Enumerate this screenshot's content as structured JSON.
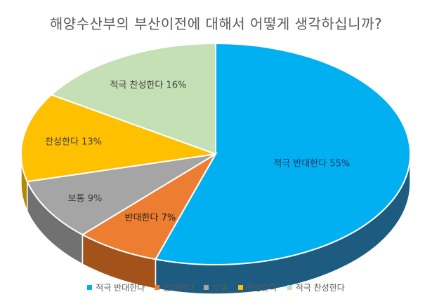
{
  "chart_data": {
    "type": "pie",
    "title": "해양수산부의 부산이전에 대해서 어떻게 생각하십니까?",
    "categories": [
      "적극 반대한다",
      "반대한다",
      "보통",
      "찬성한다",
      "적극 찬성한다"
    ],
    "values": [
      55,
      7,
      9,
      13,
      16
    ],
    "data_labels": [
      "적극 반대한다 55%",
      "반대한다 7%",
      "보통 9%",
      "찬성한다 13%",
      "적극 찬성한다 16%"
    ],
    "colors": [
      "#00B0F0",
      "#ED7D31",
      "#A5A5A5",
      "#FFC000",
      "#C5E0B4"
    ],
    "side_colors": [
      "#1D5C80",
      "#A3531A",
      "#717171",
      "#B38700",
      "#8FA37F"
    ],
    "label_colors": [
      "#1F3864",
      "#1F1F1F",
      "#404040",
      "#404040",
      "#404040"
    ],
    "legend_position": "bottom",
    "style": "3d"
  }
}
